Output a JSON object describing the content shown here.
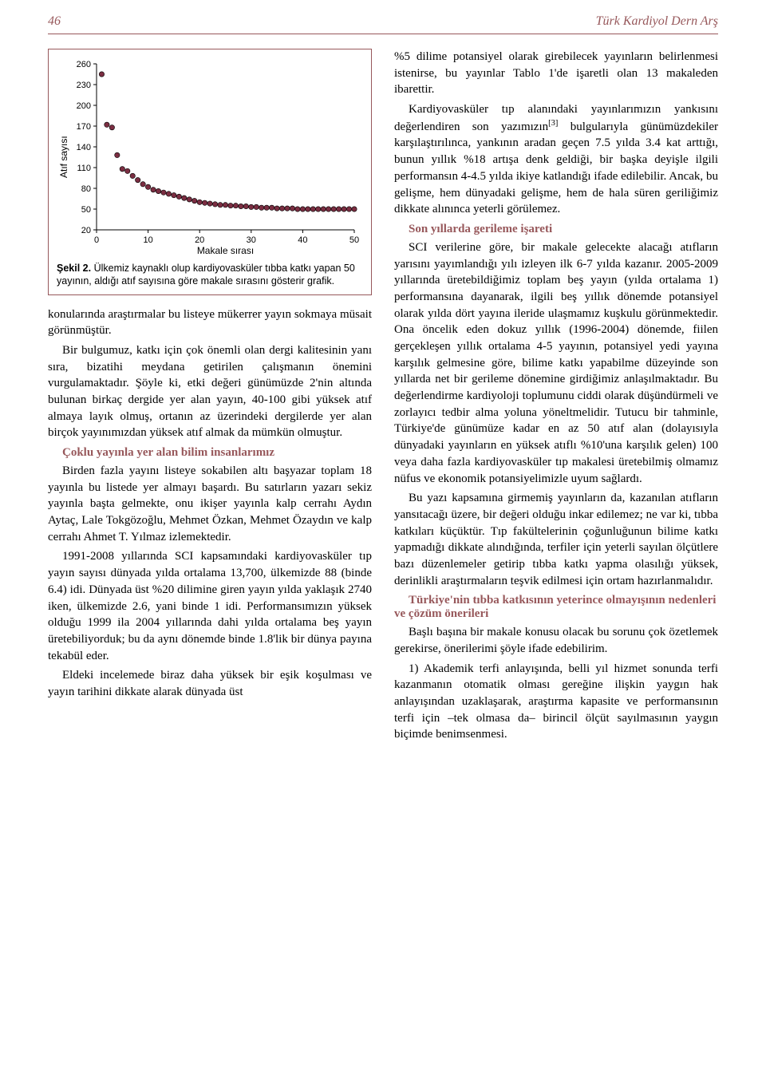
{
  "header": {
    "page_number": "46",
    "running_title": "Türk Kardiyol Dern Arş"
  },
  "chart": {
    "type": "scatter",
    "ylabel": "Atıf sayısı",
    "xlabel": "Makale sırası",
    "caption_label": "Şekil 2.",
    "caption_text": "Ülkemiz kaynaklı olup kardiyovasküler tıbba katkı yapan 50 yayının, aldığı atıf sayısına göre makale sırasını gösterir grafik.",
    "yticks": [
      20,
      50,
      80,
      110,
      140,
      170,
      200,
      230,
      260
    ],
    "xticks": [
      0,
      10,
      20,
      30,
      40,
      50
    ],
    "ylim": [
      20,
      260
    ],
    "xlim": [
      0,
      50
    ],
    "marker_color": "#7b2e42",
    "marker_stroke": "#000000",
    "marker_radius": 3.2,
    "axis_color": "#000000",
    "background_color": "#ffffff",
    "tick_fontsize": 11,
    "label_fontsize": 12,
    "points": [
      {
        "x": 1,
        "y": 245
      },
      {
        "x": 2,
        "y": 172
      },
      {
        "x": 3,
        "y": 168
      },
      {
        "x": 4,
        "y": 128
      },
      {
        "x": 5,
        "y": 108
      },
      {
        "x": 6,
        "y": 105
      },
      {
        "x": 7,
        "y": 98
      },
      {
        "x": 8,
        "y": 92
      },
      {
        "x": 9,
        "y": 86
      },
      {
        "x": 10,
        "y": 82
      },
      {
        "x": 11,
        "y": 78
      },
      {
        "x": 12,
        "y": 76
      },
      {
        "x": 13,
        "y": 74
      },
      {
        "x": 14,
        "y": 72
      },
      {
        "x": 15,
        "y": 70
      },
      {
        "x": 16,
        "y": 68
      },
      {
        "x": 17,
        "y": 66
      },
      {
        "x": 18,
        "y": 64
      },
      {
        "x": 19,
        "y": 62
      },
      {
        "x": 20,
        "y": 60
      },
      {
        "x": 21,
        "y": 59
      },
      {
        "x": 22,
        "y": 58
      },
      {
        "x": 23,
        "y": 57
      },
      {
        "x": 24,
        "y": 56
      },
      {
        "x": 25,
        "y": 56
      },
      {
        "x": 26,
        "y": 55
      },
      {
        "x": 27,
        "y": 55
      },
      {
        "x": 28,
        "y": 54
      },
      {
        "x": 29,
        "y": 54
      },
      {
        "x": 30,
        "y": 53
      },
      {
        "x": 31,
        "y": 53
      },
      {
        "x": 32,
        "y": 52
      },
      {
        "x": 33,
        "y": 52
      },
      {
        "x": 34,
        "y": 52
      },
      {
        "x": 35,
        "y": 51
      },
      {
        "x": 36,
        "y": 51
      },
      {
        "x": 37,
        "y": 51
      },
      {
        "x": 38,
        "y": 51
      },
      {
        "x": 39,
        "y": 50
      },
      {
        "x": 40,
        "y": 50
      },
      {
        "x": 41,
        "y": 50
      },
      {
        "x": 42,
        "y": 50
      },
      {
        "x": 43,
        "y": 50
      },
      {
        "x": 44,
        "y": 50
      },
      {
        "x": 45,
        "y": 50
      },
      {
        "x": 46,
        "y": 50
      },
      {
        "x": 47,
        "y": 50
      },
      {
        "x": 48,
        "y": 50
      },
      {
        "x": 49,
        "y": 50
      },
      {
        "x": 50,
        "y": 50
      }
    ]
  },
  "left": {
    "p1": "konularında araştırmalar bu listeye mükerrer yayın sokmaya müsait görünmüştür.",
    "p2": "Bir bulgumuz, katkı için çok önemli olan dergi kalitesinin yanı sıra, bizatihi meydana getirilen çalışmanın önemini vurgulamaktadır. Şöyle ki, etki değeri günümüzde 2'nin altında bulunan birkaç dergide yer alan yayın, 40-100 gibi yüksek atıf almaya layık olmuş, ortanın az üzerindeki dergilerde yer alan birçok yayınımızdan yüksek atıf almak da mümkün olmuştur.",
    "sub1": "Çoklu yayınla yer alan bilim insanlarımız",
    "p3": "Birden fazla yayını listeye sokabilen altı başyazar toplam 18 yayınla bu listede yer almayı başardı. Bu satırların yazarı sekiz yayınla başta gelmekte, onu ikişer yayınla kalp cerrahı Aydın Aytaç, Lale Tokgözoğlu, Mehmet Özkan, Mehmet Özaydın ve kalp cerrahı Ahmet T. Yılmaz izlemektedir.",
    "p4": "1991-2008 yıllarında SCI kapsamındaki kardiyovasküler tıp yayın sayısı dünyada yılda ortalama 13,700, ülkemizde 88 (binde 6.4) idi. Dünyada üst %20 dilimine giren yayın yılda yaklaşık 2740 iken, ülkemizde 2.6, yani binde 1 idi. Performansımızın yüksek olduğu 1999 ila 2004 yıllarında dahi yılda ortalama beş yayın üretebiliyorduk; bu da aynı dönemde binde 1.8'lik bir dünya payına tekabül eder.",
    "p5": "Eldeki incelemede biraz daha yüksek bir eşik koşulması ve yayın tarihini dikkate alarak dünyada üst"
  },
  "right": {
    "p1": "%5 dilime potansiyel olarak girebilecek yayınların belirlenmesi istenirse, bu yayınlar Tablo 1'de işaretli olan 13 makaleden ibarettir.",
    "p2a": "Kardiyovasküler tıp alanındaki yayınlarımızın yankısını değerlendiren son yazımızın",
    "p2sup": "[3]",
    "p2b": " bulgularıyla günümüzdekiler karşılaştırılınca, yankının aradan geçen 7.5 yılda 3.4 kat arttığı, bunun yıllık %18 artışa denk geldiği, bir başka deyişle ilgili performansın 4-4.5 yılda ikiye katlandığı ifade edilebilir. Ancak, bu gelişme, hem dünyadaki gelişme, hem de hala süren geriliğimiz dikkate alınınca yeterli görülemez.",
    "sub1": "Son yıllarda gerileme işareti",
    "p3": "SCI verilerine göre, bir makale gelecekte alacağı atıfların yarısını yayımlandığı yılı izleyen ilk 6-7 yılda kazanır. 2005-2009 yıllarında üretebildiğimiz toplam beş yayın (yılda ortalama 1) performansına dayanarak, ilgili beş yıllık dönemde potansiyel olarak yılda dört yayına ileride ulaşmamız kuşkulu görünmektedir. Ona öncelik eden dokuz yıllık (1996-2004) dönemde, fiilen gerçekleşen yıllık ortalama 4-5 yayının, potansiyel yedi yayına karşılık gelmesine göre, bilime katkı yapabilme düzeyinde son yıllarda net bir gerileme dönemine girdiğimiz anlaşılmaktadır. Bu değerlendirme kardiyoloji toplumunu ciddi olarak düşündürmeli ve zorlayıcı tedbir alma yoluna yöneltmelidir. Tutucu bir tahminle, Türkiye'de günümüze kadar en az 50 atıf alan (dolayısıyla dünyadaki yayınların en yüksek atıflı %10'una karşılık gelen) 100 veya daha fazla kardiyovasküler tıp makalesi üretebilmiş olmamız nüfus ve ekonomik potansiyelimizle uyum sağlardı.",
    "p4": "Bu yazı kapsamına girmemiş yayınların da, kazanılan atıfların yansıtacağı üzere, bir değeri olduğu inkar edilemez; ne var ki, tıbba katkıları küçüktür. Tıp fakültelerinin çoğunluğunun bilime katkı yapmadığı dikkate alındığında, terfiler için yeterli sayılan ölçütlere bazı düzenlemeler getirip tıbba katkı yapma olasılığı yüksek, derinlikli araştırmaların teşvik edilmesi için ortam hazırlanmalıdır.",
    "sub2": "Türkiye'nin tıbba katkısının yeterince olmayışının nedenleri ve çözüm önerileri",
    "p5": "Başlı başına bir makale konusu olacak bu sorunu çok özetlemek gerekirse, önerilerimi şöyle ifade edebilirim.",
    "p6": "1) Akademik terfi anlayışında, belli yıl hizmet sonunda terfi kazanmanın otomatik olması gereğine ilişkin yaygın hak anlayışından uzaklaşarak, araştırma kapasite ve performansının terfi için –tek olmasa da– birincil ölçüt sayılmasının yaygın biçimde benimsenmesi."
  }
}
